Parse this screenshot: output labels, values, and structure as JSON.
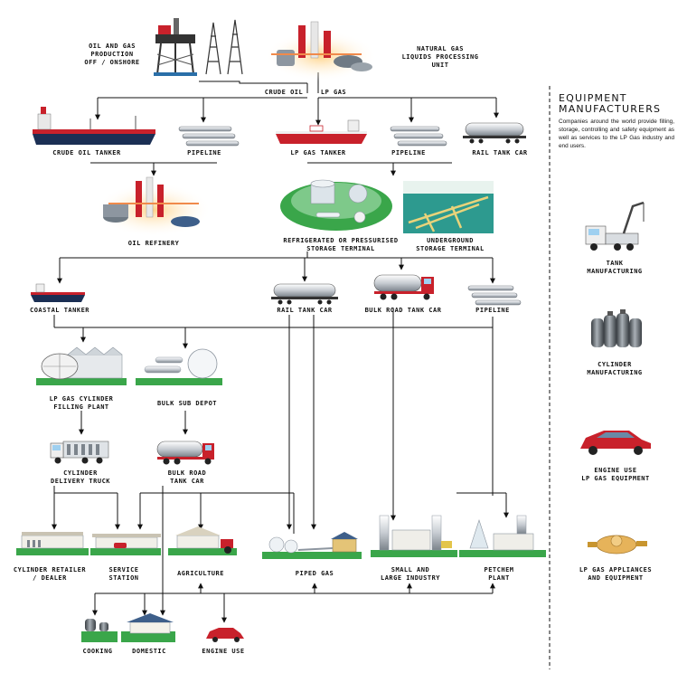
{
  "flow": {
    "oil_gas_production": "OIL AND GAS\nPRODUCTION\nOFF / ONSHORE",
    "ngl_unit": "NATURAL GAS\nLIQUIDS PROCESSING\nUNIT",
    "crude_oil": "CRUDE OIL",
    "lp_gas": "LP GAS",
    "crude_oil_tanker": "CRUDE OIL TANKER",
    "pipeline_1": "PIPELINE",
    "lp_gas_tanker": "LP GAS TANKER",
    "pipeline_2": "PIPELINE",
    "rail_tank_car_1": "RAIL TANK CAR",
    "oil_refinery": "OIL REFINERY",
    "refrigerated_storage": "REFRIGERATED OR PRESSURISED\nSTORAGE TERMINAL",
    "underground_storage": "UNDERGROUND\nSTORAGE TERMINAL",
    "coastal_tanker": "COASTAL TANKER",
    "rail_tank_car_2": "RAIL TANK CAR",
    "bulk_road_tank_car_1": "BULK ROAD TANK CAR",
    "pipeline_3": "PIPELINE",
    "cylinder_filling_plant": "LP GAS CYLINDER\nFILLING PLANT",
    "bulk_sub_depot": "BULK SUB DEPOT",
    "cylinder_delivery_truck": "CYLINDER\nDELIVERY TRUCK",
    "bulk_road_tank_car_2": "BULK ROAD\nTANK CAR",
    "cylinder_retailer": "CYLINDER RETAILER\n/ DEALER",
    "service_station": "SERVICE\nSTATION",
    "agriculture": "AGRICULTURE",
    "piped_gas": "PIPED GAS",
    "industry": "SMALL AND\nLARGE INDUSTRY",
    "petchem_plant": "PETCHEM\nPLANT",
    "cooking": "COOKING",
    "domestic": "DOMESTIC",
    "engine_use": "ENGINE USE"
  },
  "equipment": {
    "title": "EQUIPMENT\nMANUFACTURERS",
    "description": "Companies around the world provide filling, storage, controlling and safety equipment as well as services to the LP Gas industry and end users.",
    "tank_manufacturing": "TANK\nMANUFACTURING",
    "cylinder_manufacturing": "CYLINDER\nMANUFACTURING",
    "engine_use_equipment": "ENGINE USE\nLP GAS EQUIPMENT",
    "appliances": "LP GAS APPLIANCES\nAND EQUIPMENT"
  },
  "colors": {
    "tanker_red": "#c8212b",
    "ship_navy": "#1b2f54",
    "grass_green": "#3aa64a",
    "storage_teal": "#2d9a8f",
    "glow_orange": "#f6a23c",
    "pipe_grey": "#8d96a0"
  }
}
